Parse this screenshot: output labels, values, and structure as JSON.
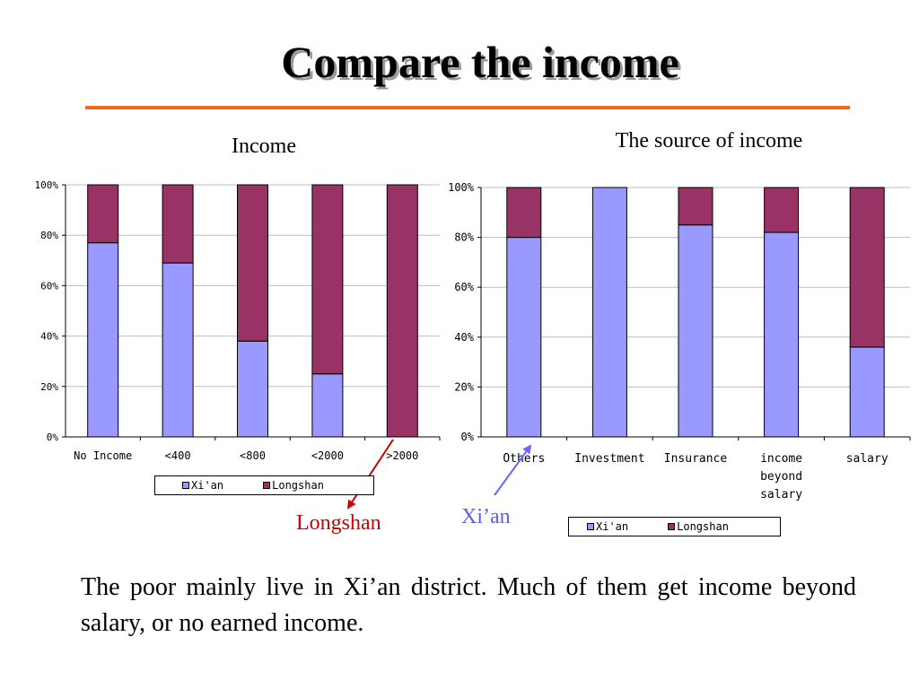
{
  "title": "Compare the income",
  "colors": {
    "xian": "#9999ff",
    "longshan": "#993366",
    "rule": "#f26b1d",
    "longshan_arrow": "#cc0000",
    "xian_arrow": "#6666ff"
  },
  "chart_data": [
    {
      "type": "bar",
      "stacked": "percent",
      "title": "Income",
      "categories": [
        "No Income",
        "<400",
        "<800",
        "<2000",
        ">2000"
      ],
      "series": [
        {
          "name": "Xi'an",
          "values": [
            77,
            69,
            38,
            25,
            0
          ]
        },
        {
          "name": "Longshan",
          "values": [
            23,
            31,
            62,
            75,
            100
          ]
        }
      ],
      "yticks": [
        "0%",
        "20%",
        "40%",
        "60%",
        "80%",
        "100%"
      ],
      "ylim": [
        0,
        100
      ],
      "grid": true,
      "legend": "bottom"
    },
    {
      "type": "bar",
      "stacked": "percent",
      "title": "The  source of income",
      "categories": [
        "Others",
        "Investment",
        "Insurance",
        "income beyond salary",
        "salary"
      ],
      "series": [
        {
          "name": "Xi'an",
          "values": [
            80,
            100,
            85,
            82,
            36
          ]
        },
        {
          "name": "Longshan",
          "values": [
            20,
            0,
            15,
            18,
            64
          ]
        }
      ],
      "yticks": [
        "0%",
        "20%",
        "40%",
        "60%",
        "80%",
        "100%"
      ],
      "ylim": [
        0,
        100
      ],
      "grid": true,
      "legend": "bottom"
    }
  ],
  "annotations": {
    "longshan": "Longshan",
    "xian": "Xi’an"
  },
  "summary": "The poor mainly live in Xi’an district. Much of them get income beyond salary, or no earned income."
}
